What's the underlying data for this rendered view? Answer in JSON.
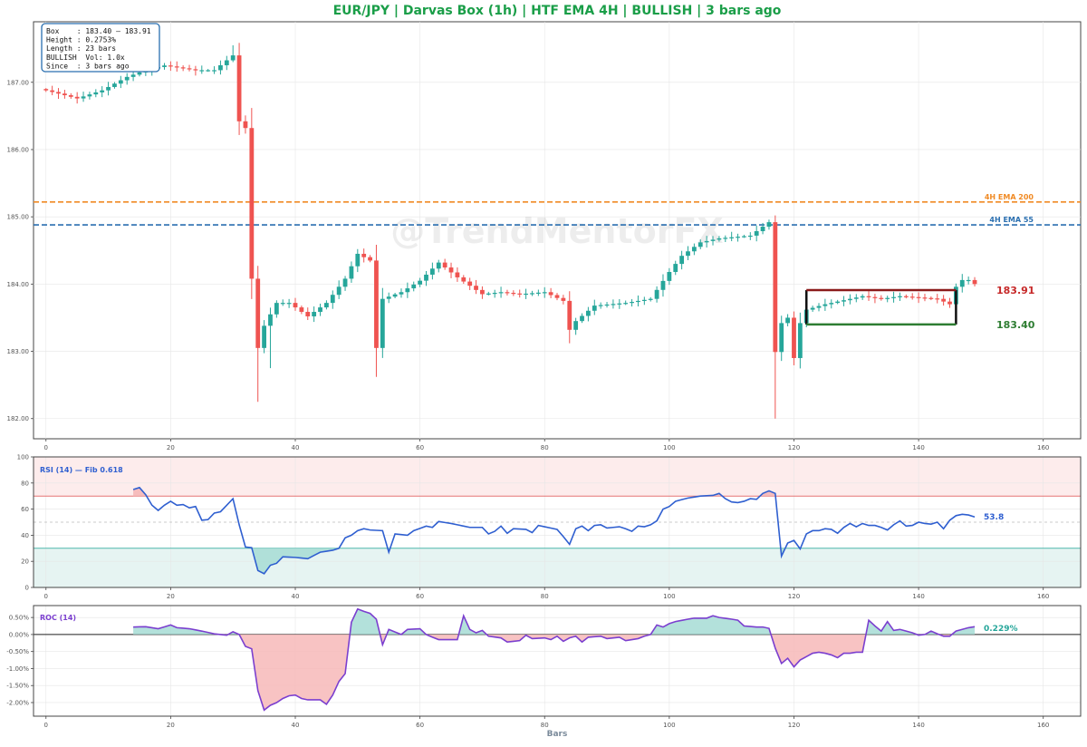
{
  "title": "EUR/JPY  |  Darvas Box (1h)  |  HTF EMA 4H  |  BULLISH  |  3 bars ago",
  "watermark": "@TrendMentorFX",
  "colors": {
    "title": "#1a9e48",
    "bull": "#26a69a",
    "bear": "#ef5350",
    "ema200": "#f08a24",
    "ema55": "#2a6fb0",
    "box_top": "#8b1a1a",
    "box_bottom": "#2e7d32",
    "rsi_line": "#2f5fd0",
    "roc_line": "#7b3fcf",
    "rsi_overbought": "#e57373",
    "rsi_oversold": "#4db6ac",
    "rsi_upper_fill": "#fdecec",
    "rsi_lower_fill": "#e6f4f2",
    "roc_pos_fill": "#a6dcd5",
    "roc_neg_fill": "#f7b9b9",
    "info_box_border": "#2a6fb0"
  },
  "info_box": {
    "lines": [
      "Box    : 183.40 – 183.91",
      "Height : 0.2753%",
      "Length : 23 bars",
      "BULLISH  Vol: 1.0x",
      "Since  : 3 bars ago"
    ]
  },
  "chart_data": [
    {
      "type": "candlestick",
      "panel": "price",
      "xlim": [
        -2,
        166
      ],
      "ylim": [
        181.7,
        187.9
      ],
      "x_ticks": [
        0,
        20,
        40,
        60,
        80,
        100,
        120,
        140,
        160
      ],
      "x_tick_labels": [
        "0",
        "20",
        "40",
        "60",
        "80",
        "100",
        "120",
        "140",
        "160"
      ],
      "y_ticks": [
        182.0,
        183.0,
        184.0,
        185.0,
        186.0,
        187.0
      ],
      "y_tick_labels": [
        "182.00",
        "183.00",
        "184.00",
        "185.00",
        "186.00",
        "187.00"
      ],
      "grid": true,
      "key_closes": [
        [
          0,
          186.88
        ],
        [
          5,
          186.76
        ],
        [
          9,
          186.88
        ],
        [
          13,
          187.08
        ],
        [
          16,
          187.18
        ],
        [
          19,
          187.25
        ],
        [
          24,
          187.18
        ],
        [
          27,
          187.18
        ],
        [
          30,
          187.4
        ],
        [
          31,
          186.42
        ],
        [
          32,
          186.32
        ],
        [
          33,
          184.08
        ],
        [
          34,
          183.05
        ],
        [
          35,
          183.38
        ],
        [
          37,
          183.72
        ],
        [
          39,
          183.72
        ],
        [
          42,
          183.52
        ],
        [
          45,
          183.72
        ],
        [
          48,
          184.08
        ],
        [
          50,
          184.45
        ],
        [
          52,
          184.35
        ],
        [
          53,
          183.05
        ],
        [
          54,
          183.78
        ],
        [
          57,
          183.88
        ],
        [
          60,
          184.05
        ],
        [
          63,
          184.32
        ],
        [
          66,
          184.1
        ],
        [
          70,
          183.85
        ],
        [
          73,
          183.88
        ],
        [
          76,
          183.85
        ],
        [
          80,
          183.88
        ],
        [
          83,
          183.75
        ],
        [
          84,
          183.32
        ],
        [
          85,
          183.45
        ],
        [
          88,
          183.68
        ],
        [
          93,
          183.72
        ],
        [
          97,
          183.78
        ],
        [
          100,
          184.18
        ],
        [
          102,
          184.42
        ],
        [
          105,
          184.62
        ],
        [
          108,
          184.68
        ],
        [
          113,
          184.72
        ],
        [
          116,
          184.92
        ],
        [
          117,
          182.99
        ],
        [
          118,
          183.42
        ],
        [
          119,
          183.5
        ],
        [
          120,
          182.9
        ],
        [
          121,
          183.42
        ],
        [
          122,
          183.62
        ],
        [
          125,
          183.7
        ],
        [
          128,
          183.76
        ],
        [
          131,
          183.82
        ],
        [
          134,
          183.78
        ],
        [
          137,
          183.82
        ],
        [
          140,
          183.8
        ],
        [
          143,
          183.78
        ],
        [
          145,
          183.7
        ],
        [
          146,
          183.96
        ],
        [
          147,
          184.06
        ],
        [
          148,
          184.06
        ],
        [
          149,
          184.0
        ]
      ],
      "extreme_wicks": [
        {
          "x": 30,
          "high": 187.55
        },
        {
          "x": 34,
          "low": 182.25
        },
        {
          "x": 36,
          "low": 182.75
        },
        {
          "x": 53,
          "low": 182.62
        },
        {
          "x": 84,
          "low": 183.12
        },
        {
          "x": 117,
          "high": 185.02
        },
        {
          "x": 117,
          "low": 182.0
        }
      ],
      "lines": [
        {
          "name": "4H EMA 200",
          "y": 185.22
        },
        {
          "name": "4H EMA 55",
          "y": 184.88
        }
      ],
      "darvas_box": {
        "x_start": 122,
        "x_end": 146,
        "top": 183.91,
        "bottom": 183.4
      },
      "box_labels": {
        "top": "183.91",
        "bottom": "183.40"
      }
    },
    {
      "type": "line",
      "panel": "rsi",
      "label": "RSI (14)  —  Fib 0.618",
      "ylim": [
        0,
        100
      ],
      "y_ticks": [
        0,
        20,
        40,
        60,
        80,
        100
      ],
      "x_ticks": [
        0,
        20,
        40,
        60,
        80,
        100,
        120,
        140,
        160
      ],
      "levels": {
        "overbought": 70,
        "mid": 50,
        "oversold": 30
      },
      "last_value_label": "53.8",
      "key_points": [
        [
          14,
          75
        ],
        [
          15,
          76.5
        ],
        [
          16,
          71
        ],
        [
          17,
          63
        ],
        [
          18,
          59
        ],
        [
          19,
          63
        ],
        [
          20,
          66
        ],
        [
          21,
          63
        ],
        [
          22,
          63.5
        ],
        [
          23,
          61
        ],
        [
          24,
          62
        ],
        [
          25,
          51.5
        ],
        [
          26,
          52
        ],
        [
          27,
          57
        ],
        [
          28,
          58
        ],
        [
          29,
          63
        ],
        [
          30,
          68
        ],
        [
          31,
          48
        ],
        [
          32,
          31
        ],
        [
          33,
          30.5
        ],
        [
          34,
          13
        ],
        [
          35,
          10.5
        ],
        [
          36,
          17
        ],
        [
          37,
          18.5
        ],
        [
          38,
          23.5
        ],
        [
          40,
          23
        ],
        [
          42,
          22
        ],
        [
          44,
          27
        ],
        [
          46,
          28.5
        ],
        [
          47,
          30
        ],
        [
          48,
          38
        ],
        [
          49,
          40
        ],
        [
          50,
          43.5
        ],
        [
          51,
          45
        ],
        [
          52,
          44
        ],
        [
          54,
          43.5
        ],
        [
          55,
          27
        ],
        [
          56,
          41
        ],
        [
          58,
          40
        ],
        [
          59,
          43.5
        ],
        [
          61,
          47
        ],
        [
          62,
          46
        ],
        [
          63,
          50.5
        ],
        [
          65,
          49
        ],
        [
          68,
          46
        ],
        [
          70,
          46
        ],
        [
          71,
          41
        ],
        [
          72,
          43
        ],
        [
          73,
          47
        ],
        [
          74,
          41.5
        ],
        [
          75,
          45
        ],
        [
          77,
          44.5
        ],
        [
          78,
          42
        ],
        [
          79,
          47.5
        ],
        [
          81,
          45.5
        ],
        [
          82,
          44.5
        ],
        [
          83,
          39
        ],
        [
          84,
          33
        ],
        [
          85,
          45
        ],
        [
          86,
          47
        ],
        [
          87,
          43.5
        ],
        [
          88,
          47.5
        ],
        [
          89,
          48
        ],
        [
          90,
          45.5
        ],
        [
          92,
          46.5
        ],
        [
          93,
          45
        ],
        [
          94,
          43
        ],
        [
          95,
          47
        ],
        [
          96,
          46.5
        ],
        [
          97,
          48
        ],
        [
          98,
          51
        ],
        [
          99,
          60
        ],
        [
          100,
          62
        ],
        [
          101,
          66
        ],
        [
          103,
          68.5
        ],
        [
          105,
          70
        ],
        [
          107,
          70.5
        ],
        [
          108,
          72
        ],
        [
          109,
          68
        ],
        [
          110,
          65.5
        ],
        [
          111,
          65
        ],
        [
          112,
          66
        ],
        [
          113,
          68
        ],
        [
          114,
          67.5
        ],
        [
          115,
          72
        ],
        [
          116,
          74
        ],
        [
          117,
          72
        ],
        [
          118,
          24
        ],
        [
          119,
          34
        ],
        [
          120,
          36
        ],
        [
          121,
          29.5
        ],
        [
          122,
          41
        ],
        [
          123,
          43.5
        ],
        [
          124,
          43.5
        ],
        [
          125,
          45
        ],
        [
          126,
          44.5
        ],
        [
          127,
          41.5
        ],
        [
          128,
          46
        ],
        [
          129,
          49
        ],
        [
          130,
          46.5
        ],
        [
          131,
          49
        ],
        [
          132,
          47.5
        ],
        [
          133,
          47.5
        ],
        [
          134,
          46
        ],
        [
          135,
          44
        ],
        [
          136,
          48
        ],
        [
          137,
          51
        ],
        [
          138,
          47
        ],
        [
          139,
          47.5
        ],
        [
          140,
          50
        ],
        [
          141,
          49
        ],
        [
          142,
          48.5
        ],
        [
          143,
          50
        ],
        [
          144,
          45
        ],
        [
          145,
          51.5
        ],
        [
          146,
          55
        ],
        [
          147,
          56
        ],
        [
          148,
          55.5
        ],
        [
          149,
          54
        ]
      ]
    },
    {
      "type": "line",
      "panel": "roc",
      "label": "ROC (14)",
      "ylim": [
        -2.4,
        0.85
      ],
      "y_ticks": [
        0.5,
        0.0,
        -0.5,
        -1.0,
        -1.5,
        -2.0
      ],
      "y_tick_labels": [
        "0.50%",
        "0.00%",
        "-0.50%",
        "-1.00%",
        "-1.50%",
        "-2.00%"
      ],
      "x_ticks": [
        0,
        20,
        40,
        60,
        80,
        100,
        120,
        140,
        160
      ],
      "xlabel": "Bars",
      "last_value_label": "0.229%",
      "key_points": [
        [
          14,
          0.22
        ],
        [
          16,
          0.23
        ],
        [
          18,
          0.17
        ],
        [
          20,
          0.28
        ],
        [
          21,
          0.2
        ],
        [
          23,
          0.17
        ],
        [
          25,
          0.1
        ],
        [
          27,
          0.02
        ],
        [
          29,
          -0.02
        ],
        [
          30,
          0.08
        ],
        [
          31,
          0.0
        ],
        [
          32,
          -0.35
        ],
        [
          33,
          -0.42
        ],
        [
          34,
          -1.65
        ],
        [
          35,
          -2.22
        ],
        [
          36,
          -2.08
        ],
        [
          37,
          -2.0
        ],
        [
          38,
          -1.88
        ],
        [
          39,
          -1.8
        ],
        [
          40,
          -1.78
        ],
        [
          41,
          -1.88
        ],
        [
          42,
          -1.92
        ],
        [
          43,
          -1.92
        ],
        [
          44,
          -1.92
        ],
        [
          45,
          -2.05
        ],
        [
          46,
          -1.78
        ],
        [
          47,
          -1.38
        ],
        [
          48,
          -1.15
        ],
        [
          49,
          0.36
        ],
        [
          50,
          0.75
        ],
        [
          51,
          0.68
        ],
        [
          52,
          0.62
        ],
        [
          53,
          0.45
        ],
        [
          54,
          -0.3
        ],
        [
          55,
          0.15
        ],
        [
          57,
          0.0
        ],
        [
          58,
          0.15
        ],
        [
          60,
          0.17
        ],
        [
          61,
          0.0
        ],
        [
          62,
          -0.08
        ],
        [
          63,
          -0.15
        ],
        [
          66,
          -0.15
        ],
        [
          67,
          0.55
        ],
        [
          68,
          0.15
        ],
        [
          69,
          0.05
        ],
        [
          70,
          0.12
        ],
        [
          71,
          -0.05
        ],
        [
          73,
          -0.1
        ],
        [
          74,
          -0.22
        ],
        [
          76,
          -0.18
        ],
        [
          77,
          -0.02
        ],
        [
          78,
          -0.12
        ],
        [
          80,
          -0.1
        ],
        [
          81,
          -0.15
        ],
        [
          82,
          -0.05
        ],
        [
          83,
          -0.2
        ],
        [
          84,
          -0.1
        ],
        [
          85,
          -0.05
        ],
        [
          86,
          -0.22
        ],
        [
          87,
          -0.08
        ],
        [
          89,
          -0.05
        ],
        [
          90,
          -0.12
        ],
        [
          92,
          -0.08
        ],
        [
          93,
          -0.18
        ],
        [
          95,
          -0.12
        ],
        [
          96,
          -0.05
        ],
        [
          97,
          0.0
        ],
        [
          98,
          0.28
        ],
        [
          99,
          0.22
        ],
        [
          100,
          0.32
        ],
        [
          101,
          0.38
        ],
        [
          103,
          0.45
        ],
        [
          104,
          0.48
        ],
        [
          106,
          0.48
        ],
        [
          107,
          0.55
        ],
        [
          108,
          0.5
        ],
        [
          110,
          0.45
        ],
        [
          111,
          0.42
        ],
        [
          112,
          0.25
        ],
        [
          114,
          0.22
        ],
        [
          115,
          0.22
        ],
        [
          116,
          0.18
        ],
        [
          117,
          -0.4
        ],
        [
          118,
          -0.85
        ],
        [
          119,
          -0.7
        ],
        [
          120,
          -0.95
        ],
        [
          121,
          -0.75
        ],
        [
          122,
          -0.65
        ],
        [
          123,
          -0.55
        ],
        [
          124,
          -0.52
        ],
        [
          125,
          -0.55
        ],
        [
          126,
          -0.6
        ],
        [
          127,
          -0.68
        ],
        [
          128,
          -0.55
        ],
        [
          129,
          -0.55
        ],
        [
          130,
          -0.52
        ],
        [
          131,
          -0.52
        ],
        [
          132,
          0.42
        ],
        [
          133,
          0.25
        ],
        [
          134,
          0.1
        ],
        [
          135,
          0.38
        ],
        [
          136,
          0.12
        ],
        [
          137,
          0.15
        ],
        [
          139,
          0.05
        ],
        [
          140,
          -0.02
        ],
        [
          141,
          0.0
        ],
        [
          142,
          0.1
        ],
        [
          143,
          0.02
        ],
        [
          144,
          -0.05
        ],
        [
          145,
          -0.05
        ],
        [
          146,
          0.1
        ],
        [
          147,
          0.15
        ],
        [
          148,
          0.2
        ],
        [
          149,
          0.23
        ]
      ]
    }
  ]
}
